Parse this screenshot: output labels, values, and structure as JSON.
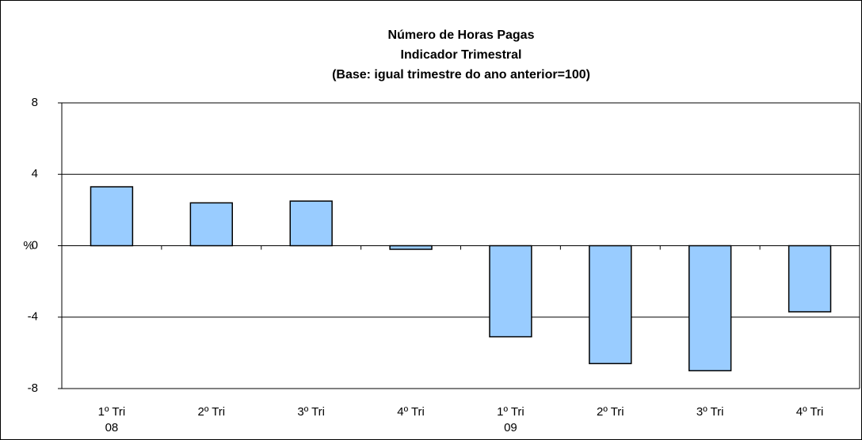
{
  "chart_data": {
    "type": "bar",
    "title": "Número de Horas Pagas\nIndicador Trimestral\n(Base: igual trimestre do ano anterior=100)",
    "ylabel": "%",
    "categories": [
      "1º Tri\n08",
      "2º Tri",
      "3º Tri",
      "4º Tri",
      "1º Tri\n09",
      "2º Tri",
      "3º Tri",
      "4º Tri"
    ],
    "values": [
      3.3,
      2.4,
      2.5,
      -0.2,
      -5.1,
      -6.6,
      -7.0,
      -3.7
    ],
    "color": "#99ccff",
    "ylim": [
      -8,
      8
    ],
    "yticks": [
      -8,
      -4,
      0,
      4,
      8
    ],
    "grid": true
  }
}
